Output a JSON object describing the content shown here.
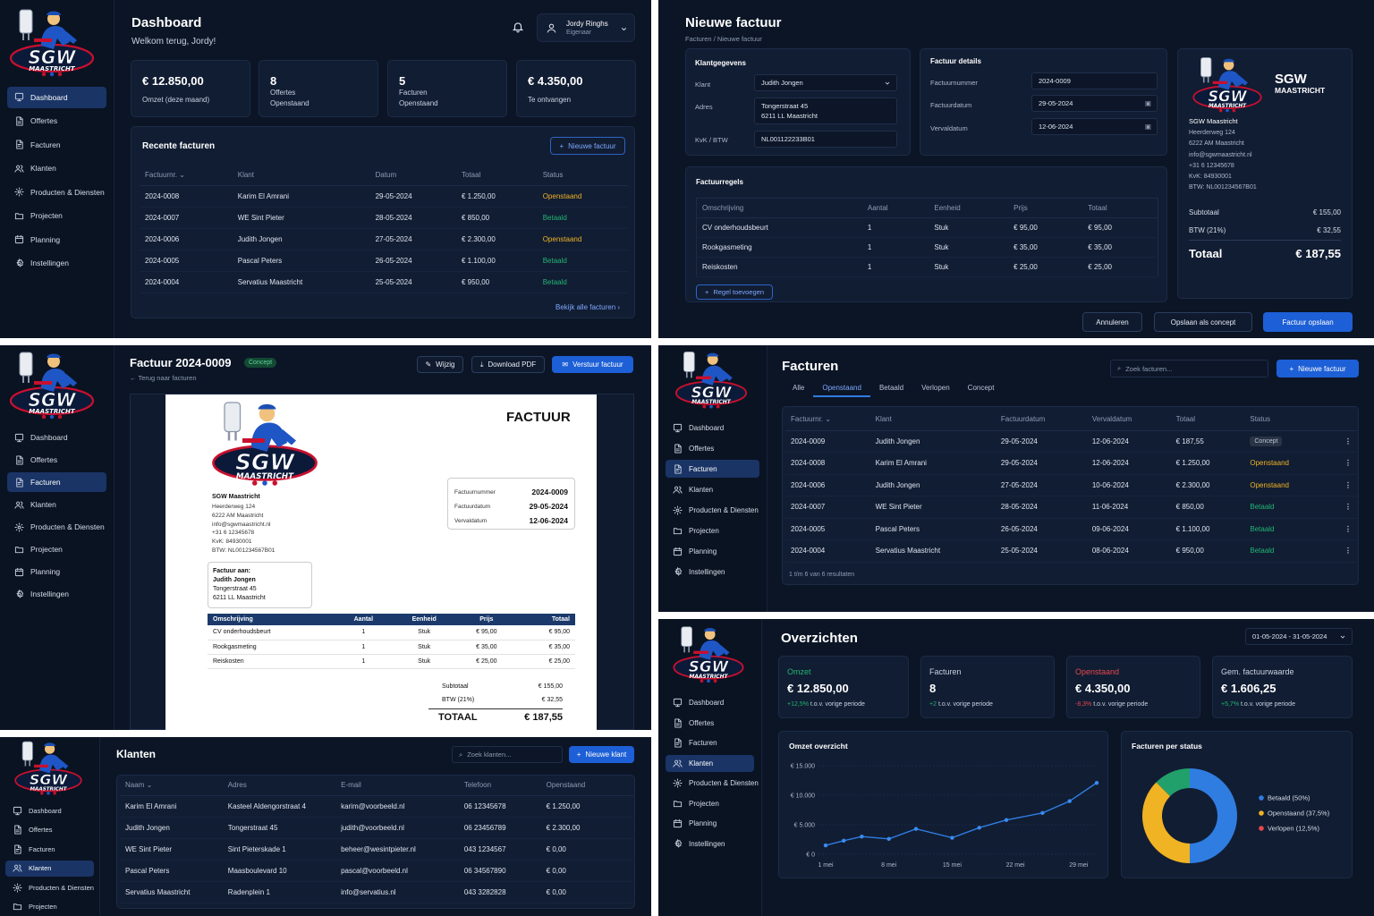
{
  "brand": {
    "line1": "SGW",
    "line2": "MAASTRICHT"
  },
  "colors": {
    "accent": "#1d5fd6",
    "paid": "#22b573",
    "open": "#f0b323",
    "overdue": "#e5484d"
  },
  "nav": [
    "Dashboard",
    "Offertes",
    "Facturen",
    "Klanten",
    "Producten & Diensten",
    "Projecten",
    "Planning",
    "Instellingen"
  ],
  "dashboard": {
    "title": "Dashboard",
    "welcome": "Welkom terug, Jordy!",
    "user": {
      "name": "Jordy Ringhs",
      "role": "Eigenaar"
    },
    "stats": [
      {
        "value": "€ 12.850,00",
        "label": "Omzet (deze maand)"
      },
      {
        "value": "8",
        "label": "Offertes",
        "sub": "Openstaand"
      },
      {
        "value": "5",
        "label": "Facturen",
        "sub": "Openstaand"
      },
      {
        "value": "€ 4.350,00",
        "label": "Te ontvangen"
      }
    ],
    "recent_title": "Recente facturen",
    "new_button": "Nieuwe factuur",
    "columns": [
      "Factuurnr.",
      "Klant",
      "Datum",
      "Totaal",
      "Status"
    ],
    "rows": [
      [
        "2024-0008",
        "Karim El Amrani",
        "29-05-2024",
        "€ 1.250,00",
        "Openstaand"
      ],
      [
        "2024-0007",
        "WE Sint Pieter",
        "28-05-2024",
        "€ 850,00",
        "Betaald"
      ],
      [
        "2024-0006",
        "Judith Jongen",
        "27-05-2024",
        "€ 2.300,00",
        "Openstaand"
      ],
      [
        "2024-0005",
        "Pascal Peters",
        "26-05-2024",
        "€ 1.100,00",
        "Betaald"
      ],
      [
        "2024-0004",
        "Servatius Maastricht",
        "25-05-2024",
        "€ 950,00",
        "Betaald"
      ]
    ],
    "view_all": "Bekijk alle facturen"
  },
  "new_invoice": {
    "title": "Nieuwe factuur",
    "breadcrumb": [
      "Facturen",
      "Nieuwe factuur"
    ],
    "client_section": "Klantgegevens",
    "client_labels": [
      "Klant",
      "Adres",
      "KvK / BTW"
    ],
    "client_value": "Judith Jongen",
    "address": [
      "Tongerstraat 45",
      "6211 LL Maastricht"
    ],
    "kvk": "NL001122233B01",
    "details_section": "Factuur details",
    "details_labels": [
      "Factuurnummer",
      "Factuurdatum",
      "Vervaldatum"
    ],
    "details_values": [
      "2024-0009",
      "29-05-2024",
      "12-06-2024"
    ],
    "lines_section": "Factuurregels",
    "line_columns": [
      "Omschrijving",
      "Aantal",
      "Eenheid",
      "Prijs",
      "Totaal"
    ],
    "lines": [
      [
        "CV onderhoudsbeurt",
        "1",
        "Stuk",
        "€ 95,00",
        "€ 95,00"
      ],
      [
        "Rookgasmeting",
        "1",
        "Stuk",
        "€ 35,00",
        "€ 35,00"
      ],
      [
        "Reiskosten",
        "1",
        "Stuk",
        "€ 25,00",
        "€ 25,00"
      ]
    ],
    "add_line": "Regel toevoegen",
    "company": {
      "name": "SGW Maastricht",
      "lines": [
        "Heerderweg 124",
        "6222 AM Maastricht",
        "info@sgwmaastricht.nl",
        "+31 6 12345678",
        "KvK: 84930001",
        "BTW: NL001234567B01"
      ]
    },
    "subtotal_label": "Subtotaal",
    "subtotal": "€ 155,00",
    "vat_label": "BTW (21%)",
    "vat": "€ 32,55",
    "total_label": "Totaal",
    "total": "€ 187,55",
    "buttons": [
      "Annuleren",
      "Opslaan als concept",
      "Factuur opslaan"
    ]
  },
  "invoice_detail": {
    "title": "Factuur 2024-0009",
    "badge": "Concept",
    "back": "Terug naar facturen",
    "buttons": [
      "Wijzig",
      "Download PDF",
      "Verstuur factuur"
    ],
    "doc_title": "FACTUUR",
    "company": {
      "name": "SGW Maastricht",
      "lines": [
        "Heerderweg 124",
        "6222 AM Maastricht",
        "info@sgwmaastricht.nl",
        "+31 6 12345678",
        "KvK: 84930001",
        "BTW: NL001234567B01"
      ]
    },
    "meta": [
      [
        "Factuurnummer",
        "2024-0009"
      ],
      [
        "Factuurdatum",
        "29-05-2024"
      ],
      [
        "Vervaldatum",
        "12-06-2024"
      ]
    ],
    "bill_to_label": "Factuur aan:",
    "bill_to": [
      "Judith Jongen",
      "Tongerstraat 45",
      "6211 LL Maastricht"
    ],
    "columns": [
      "Omschrijving",
      "Aantal",
      "Eenheid",
      "Prijs",
      "Totaal"
    ],
    "lines": [
      [
        "CV onderhoudsbeurt",
        "1",
        "Stuk",
        "€ 95,00",
        "€ 95,00"
      ],
      [
        "Rookgasmeting",
        "1",
        "Stuk",
        "€ 35,00",
        "€ 35,00"
      ],
      [
        "Reiskosten",
        "1",
        "Stuk",
        "€ 25,00",
        "€ 25,00"
      ]
    ],
    "subtotal": [
      "Subtotaal",
      "€ 155,00"
    ],
    "vat": [
      "BTW (21%)",
      "€ 32,55"
    ],
    "total": [
      "TOTAAL",
      "€ 187,55"
    ]
  },
  "invoices": {
    "title": "Facturen",
    "search_placeholder": "Zoek facturen...",
    "new_button": "Nieuwe factuur",
    "tabs": [
      "Alle",
      "Openstaand",
      "Betaald",
      "Verlopen",
      "Concept"
    ],
    "columns": [
      "Factuurnr.",
      "Klant",
      "Factuurdatum",
      "Vervaldatum",
      "Totaal",
      "Status"
    ],
    "rows": [
      [
        "2024-0009",
        "Judith Jongen",
        "29-05-2024",
        "12-06-2024",
        "€ 187,55",
        "Concept"
      ],
      [
        "2024-0008",
        "Karim El Amrani",
        "29-05-2024",
        "12-06-2024",
        "€ 1.250,00",
        "Openstaand"
      ],
      [
        "2024-0006",
        "Judith Jongen",
        "27-05-2024",
        "10-06-2024",
        "€ 2.300,00",
        "Openstaand"
      ],
      [
        "2024-0007",
        "WE Sint Pieter",
        "28-05-2024",
        "11-06-2024",
        "€ 850,00",
        "Betaald"
      ],
      [
        "2024-0005",
        "Pascal Peters",
        "26-05-2024",
        "09-06-2024",
        "€ 1.100,00",
        "Betaald"
      ],
      [
        "2024-0004",
        "Servatius Maastricht",
        "25-05-2024",
        "08-06-2024",
        "€ 950,00",
        "Betaald"
      ]
    ],
    "footer": "1 t/m 6 van 6 resultaten"
  },
  "clients": {
    "title": "Klanten",
    "search_placeholder": "Zoek klanten...",
    "new_button": "Nieuwe klant",
    "columns": [
      "Naam",
      "Adres",
      "E-mail",
      "Telefoon",
      "Openstaand"
    ],
    "rows": [
      [
        "Karim El Amrani",
        "Kasteel Aldengorstraat 4",
        "karim@voorbeeld.nl",
        "06 12345678",
        "€ 1.250,00"
      ],
      [
        "Judith Jongen",
        "Tongerstraat 45",
        "judith@voorbeeld.nl",
        "06 23456789",
        "€ 2.300,00"
      ],
      [
        "WE Sint Pieter",
        "Sint Pieterskade 1",
        "beheer@wesintpieter.nl",
        "043 1234567",
        "€ 0,00"
      ],
      [
        "Pascal Peters",
        "Maasboulevard 10",
        "pascal@voorbeeld.nl",
        "06 34567890",
        "€ 0,00"
      ],
      [
        "Servatius Maastricht",
        "Radenplein 1",
        "info@servatius.nl",
        "043 3282828",
        "€ 0,00"
      ]
    ]
  },
  "overview": {
    "title": "Overzichten",
    "date_range": "01-05-2024 - 31-05-2024",
    "kpis": [
      {
        "label": "Omzet",
        "value": "€ 12.850,00",
        "delta": "+12,5%",
        "suffix": "t.o.v. vorige periode",
        "label_color": "green",
        "delta_color": "green"
      },
      {
        "label": "Facturen",
        "value": "8",
        "delta": "+2",
        "suffix": "t.o.v. vorige periode",
        "label_color": "",
        "delta_color": "green"
      },
      {
        "label": "Openstaand",
        "value": "€ 4.350,00",
        "delta": "-8,3%",
        "suffix": "t.o.v. vorige periode",
        "label_color": "red",
        "delta_color": "red"
      },
      {
        "label": "Gem. factuurwaarde",
        "value": "€ 1.606,25",
        "delta": "+5,7%",
        "suffix": "t.o.v. vorige periode",
        "label_color": "",
        "delta_color": "green"
      }
    ],
    "line_title": "Omzet overzicht",
    "pie_title": "Facturen per status"
  },
  "chart_data": [
    {
      "type": "line",
      "title": "Omzet overzicht",
      "x": [
        "1 mei",
        "2 mei",
        "3 mei",
        "4 mei",
        "5 mei",
        "6 mei",
        "7 mei",
        "8 mei",
        "9 mei",
        "10 mei",
        "11 mei",
        "12 mei",
        "13 mei",
        "14 mei",
        "15 mei",
        "16 mei",
        "17 mei",
        "18 mei",
        "19 mei",
        "20 mei",
        "21 mei",
        "22 mei",
        "23 mei",
        "24 mei",
        "25 mei",
        "26 mei",
        "27 mei",
        "28 mei",
        "29 mei",
        "30 mei",
        "31 mei"
      ],
      "xticks": [
        "1 mei",
        "8 mei",
        "15 mei",
        "22 mei",
        "29 mei"
      ],
      "series": [
        {
          "values": [
            1500,
            null,
            2300,
            null,
            3000,
            null,
            null,
            2600,
            null,
            null,
            4300,
            null,
            null,
            null,
            2800,
            null,
            null,
            4500,
            null,
            null,
            5800,
            null,
            null,
            null,
            7000,
            null,
            null,
            9000,
            null,
            null,
            12100
          ]
        }
      ],
      "yticks": [
        "€ 0",
        "€ 5.000",
        "€ 10.000",
        "€ 15.000"
      ],
      "ylim": [
        0,
        15000
      ]
    },
    {
      "type": "pie",
      "title": "Facturen per status",
      "donut": true,
      "slices": [
        {
          "name": "Betaald (50%)",
          "value": 50,
          "color": "#2f7de1"
        },
        {
          "name": "Openstaand (37,5%)",
          "value": 37.5,
          "color": "#f0b323"
        },
        {
          "name": "Verlopen (12,5%)",
          "value": 12.5,
          "color": "#22a06b"
        }
      ],
      "legend": "right"
    }
  ]
}
